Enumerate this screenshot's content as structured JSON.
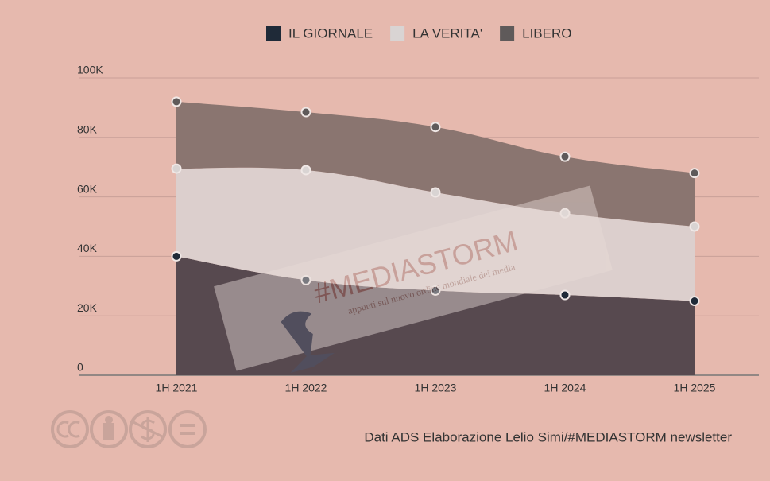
{
  "chart_data": {
    "type": "stacked-area",
    "categories": [
      "1H 2021",
      "1H 2022",
      "1H 2023",
      "1H 2024",
      "1H 2025"
    ],
    "series": [
      {
        "name": "IL GIORNALE",
        "color": "#1f2a38",
        "values": [
          40,
          32,
          28.5,
          27,
          25
        ]
      },
      {
        "name": "LA VERITA'",
        "color": "#d9d4d3",
        "values": [
          29.5,
          37,
          33,
          27.5,
          25
        ]
      },
      {
        "name": "LIBERO",
        "color": "#5f5a5a",
        "values": [
          22.5,
          19.5,
          22,
          19,
          18
        ]
      }
    ],
    "ylim": [
      0,
      100
    ],
    "yticks": [
      0,
      {
        "value": 20,
        "label": "20K"
      },
      {
        "value": 40,
        "label": "40K"
      },
      {
        "value": 60,
        "label": "60K"
      },
      {
        "value": 80,
        "label": "80K"
      },
      {
        "value": 100,
        "label": "100K"
      }
    ],
    "grid": true,
    "legend": "top",
    "watermark": "#MEDIASTORM",
    "watermark_subtitle": "appunti sul nuovo ordine mondiale dei media",
    "source": "Dati ADS  Elaborazione Lelio Simi/#MEDIASTORM newsletter"
  }
}
